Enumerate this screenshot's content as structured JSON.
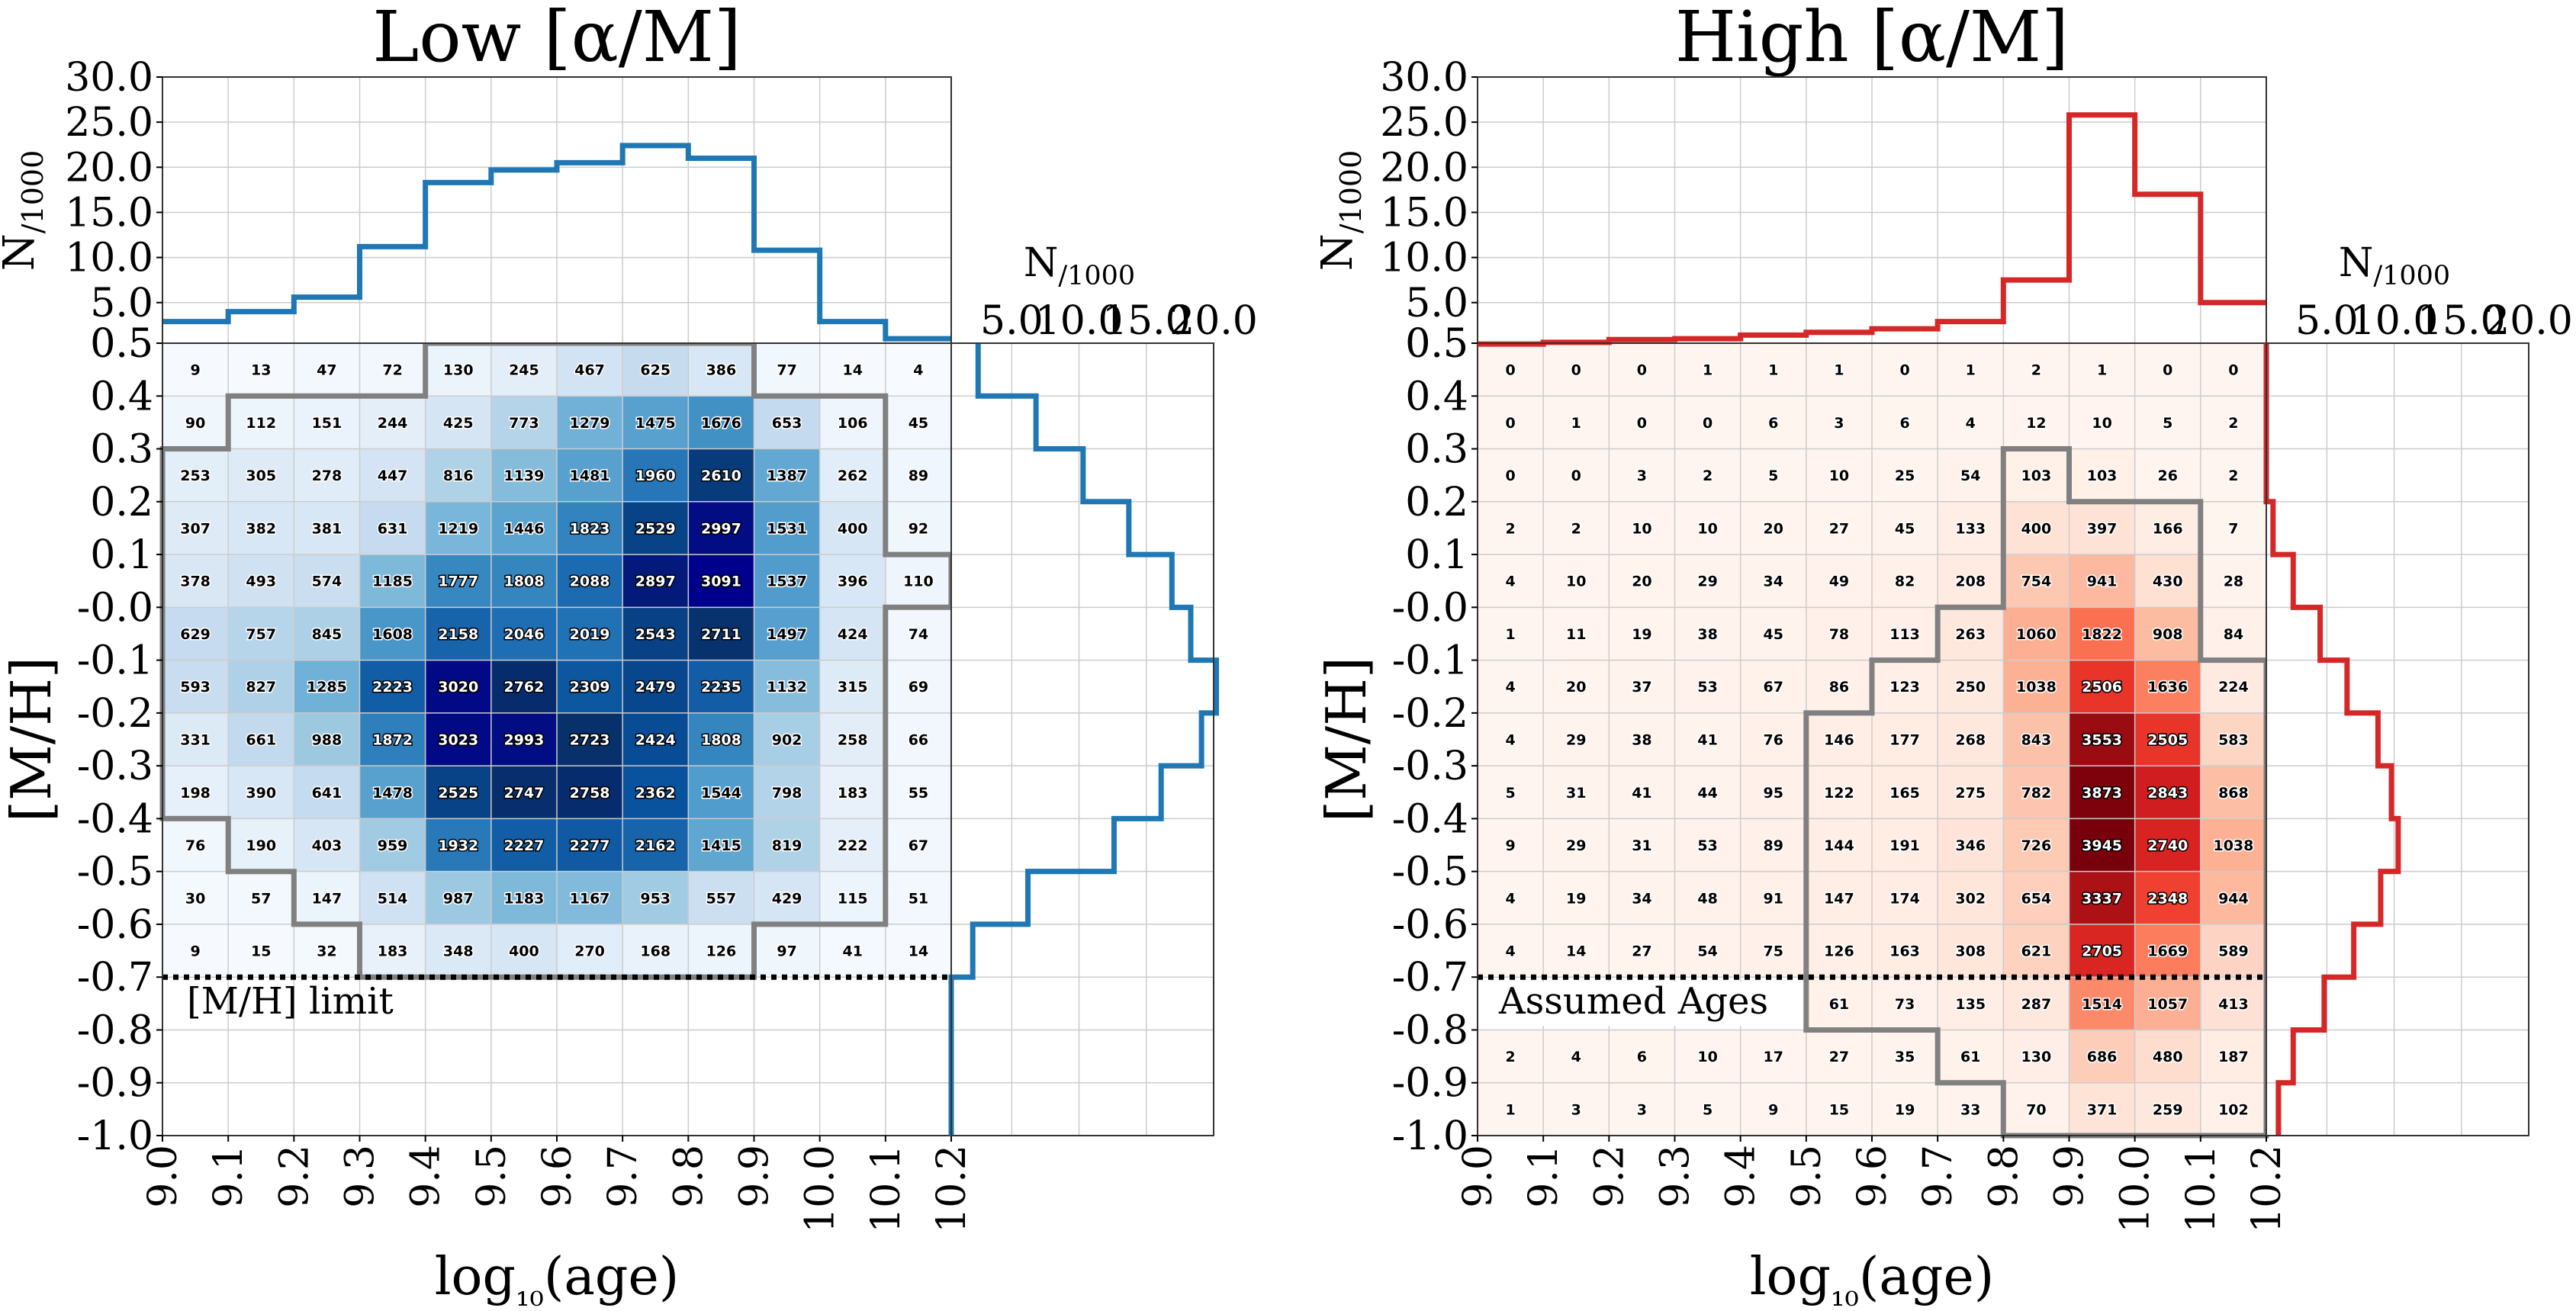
{
  "chart_data": [
    {
      "type": "heatmap",
      "title": "Low [α/M]",
      "xlabel": "log₁₀(age)",
      "ylabel": "[M/H]",
      "x_bins": [
        9.0,
        9.1,
        9.2,
        9.3,
        9.4,
        9.5,
        9.6,
        9.7,
        9.8,
        9.9,
        10.0,
        10.1,
        10.2
      ],
      "y_bins": [
        0.5,
        0.4,
        0.3,
        0.2,
        0.1,
        0.0,
        -0.1,
        -0.2,
        -0.3,
        -0.4,
        -0.5,
        -0.6,
        -0.7,
        -0.8,
        -0.9,
        -1.0
      ],
      "x_tick_labels": [
        "9.0",
        "9.1",
        "9.2",
        "9.3",
        "9.4",
        "9.5",
        "9.6",
        "9.7",
        "9.8",
        "9.9",
        "10.0",
        "10.1",
        "10.2"
      ],
      "y_tick_labels": [
        "0.5",
        "0.4",
        "0.3",
        "0.2",
        "0.1",
        "-0.0",
        "-0.1",
        "-0.2",
        "-0.3",
        "-0.4",
        "-0.5",
        "-0.6",
        "-0.7",
        "-0.8",
        "-0.9",
        "-1.0"
      ],
      "counts": [
        [
          9,
          13,
          47,
          72,
          130,
          245,
          467,
          625,
          386,
          77,
          14,
          4
        ],
        [
          90,
          112,
          151,
          244,
          425,
          773,
          1279,
          1475,
          1676,
          653,
          106,
          45
        ],
        [
          253,
          305,
          278,
          447,
          816,
          1139,
          1481,
          1960,
          2610,
          1387,
          262,
          89
        ],
        [
          307,
          382,
          381,
          631,
          1219,
          1446,
          1823,
          2529,
          2997,
          1531,
          400,
          92
        ],
        [
          378,
          493,
          574,
          1185,
          1777,
          1808,
          2088,
          2897,
          3091,
          1537,
          396,
          110
        ],
        [
          629,
          757,
          845,
          1608,
          2158,
          2046,
          2019,
          2543,
          2711,
          1497,
          424,
          74
        ],
        [
          593,
          827,
          1285,
          2223,
          3020,
          2762,
          2309,
          2479,
          2235,
          1132,
          315,
          69
        ],
        [
          331,
          661,
          988,
          1872,
          3023,
          2993,
          2723,
          2424,
          1808,
          902,
          258,
          66
        ],
        [
          198,
          390,
          641,
          1478,
          2525,
          2747,
          2758,
          2362,
          1544,
          798,
          183,
          55
        ],
        [
          76,
          190,
          403,
          959,
          1932,
          2227,
          2277,
          2162,
          1415,
          819,
          222,
          67
        ],
        [
          30,
          57,
          147,
          514,
          987,
          1183,
          1167,
          953,
          557,
          429,
          115,
          51
        ],
        [
          9,
          15,
          32,
          183,
          348,
          400,
          270,
          168,
          126,
          97,
          41,
          14
        ],
        [
          null,
          null,
          null,
          null,
          null,
          null,
          null,
          null,
          null,
          null,
          null,
          null
        ],
        [
          null,
          null,
          null,
          null,
          null,
          null,
          null,
          null,
          null,
          null,
          null,
          null
        ],
        [
          null,
          null,
          null,
          null,
          null,
          null,
          null,
          null,
          null,
          null,
          null,
          null
        ]
      ],
      "colormap": "Blues",
      "contour_boundary": [
        [
          9.0,
          0.3
        ],
        [
          9.1,
          0.3
        ],
        [
          9.1,
          0.4
        ],
        [
          9.4,
          0.4
        ],
        [
          9.4,
          0.5
        ],
        [
          9.9,
          0.5
        ],
        [
          9.9,
          0.4
        ],
        [
          10.1,
          0.4
        ],
        [
          10.1,
          0.1
        ],
        [
          10.2,
          0.1
        ],
        [
          10.2,
          0.0
        ],
        [
          10.1,
          0.0
        ],
        [
          10.1,
          -0.6
        ],
        [
          9.9,
          -0.6
        ],
        [
          9.9,
          -0.7
        ],
        [
          9.3,
          -0.7
        ],
        [
          9.3,
          -0.6
        ],
        [
          9.2,
          -0.6
        ],
        [
          9.2,
          -0.5
        ],
        [
          9.1,
          -0.5
        ],
        [
          9.1,
          -0.4
        ],
        [
          9.0,
          -0.4
        ]
      ],
      "top_hist": {
        "ylabel": "N/1000",
        "ylim": [
          0.5,
          30.0
        ],
        "y_tick_labels": [
          "0.5",
          "5.0",
          "10.0",
          "15.0",
          "20.0",
          "25.0",
          "30.0"
        ],
        "values": [
          2.9,
          4.0,
          5.6,
          11.2,
          18.3,
          19.7,
          20.5,
          22.4,
          21.0,
          10.8,
          2.9,
          1.0
        ],
        "color": "#1f77b4"
      },
      "side_hist": {
        "xlabel": "N/1000",
        "xlim": [
          0.5,
          20.0
        ],
        "x_tick_labels": [
          "5.0",
          "10.0",
          "15.0",
          "20.0"
        ],
        "values": [
          2.5,
          6.8,
          10.3,
          13.7,
          16.9,
          18.3,
          20.2,
          19.1,
          16.1,
          12.6,
          6.2,
          2.1,
          0.4,
          0.0,
          0.0
        ],
        "color": "#1f77b4"
      },
      "annotation": {
        "text": "[M/H] limit",
        "y": -0.7
      }
    },
    {
      "type": "heatmap",
      "title": "High [α/M]",
      "xlabel": "log₁₀(age)",
      "ylabel": "[M/H]",
      "x_bins": [
        9.0,
        9.1,
        9.2,
        9.3,
        9.4,
        9.5,
        9.6,
        9.7,
        9.8,
        9.9,
        10.0,
        10.1,
        10.2
      ],
      "y_bins": [
        0.5,
        0.4,
        0.3,
        0.2,
        0.1,
        0.0,
        -0.1,
        -0.2,
        -0.3,
        -0.4,
        -0.5,
        -0.6,
        -0.7,
        -0.8,
        -0.9,
        -1.0
      ],
      "x_tick_labels": [
        "9.0",
        "9.1",
        "9.2",
        "9.3",
        "9.4",
        "9.5",
        "9.6",
        "9.7",
        "9.8",
        "9.9",
        "10.0",
        "10.1",
        "10.2"
      ],
      "y_tick_labels": [
        "0.5",
        "0.4",
        "0.3",
        "0.2",
        "0.1",
        "-0.0",
        "-0.1",
        "-0.2",
        "-0.3",
        "-0.4",
        "-0.5",
        "-0.6",
        "-0.7",
        "-0.8",
        "-0.9",
        "-1.0"
      ],
      "counts": [
        [
          0,
          0,
          0,
          1,
          1,
          1,
          0,
          1,
          2,
          1,
          0,
          0
        ],
        [
          0,
          1,
          0,
          0,
          6,
          3,
          6,
          4,
          12,
          10,
          5,
          2
        ],
        [
          0,
          0,
          3,
          2,
          5,
          10,
          25,
          54,
          103,
          103,
          26,
          2
        ],
        [
          2,
          2,
          10,
          10,
          20,
          27,
          45,
          133,
          400,
          397,
          166,
          7
        ],
        [
          4,
          10,
          20,
          29,
          34,
          49,
          82,
          208,
          754,
          941,
          430,
          28
        ],
        [
          1,
          11,
          19,
          38,
          45,
          78,
          113,
          263,
          1060,
          1822,
          908,
          84
        ],
        [
          4,
          20,
          37,
          53,
          67,
          86,
          123,
          250,
          1038,
          2506,
          1636,
          224
        ],
        [
          4,
          29,
          38,
          41,
          76,
          146,
          177,
          268,
          843,
          3553,
          2505,
          583
        ],
        [
          5,
          31,
          41,
          44,
          95,
          122,
          165,
          275,
          782,
          3873,
          2843,
          868
        ],
        [
          9,
          29,
          31,
          53,
          89,
          144,
          191,
          346,
          726,
          3945,
          2740,
          1038
        ],
        [
          4,
          19,
          34,
          48,
          91,
          147,
          174,
          302,
          654,
          3337,
          2348,
          944
        ],
        [
          4,
          14,
          27,
          54,
          75,
          126,
          163,
          308,
          621,
          2705,
          1669,
          589
        ],
        [
          null,
          null,
          null,
          null,
          null,
          61,
          73,
          135,
          287,
          1514,
          1057,
          413
        ],
        [
          2,
          4,
          6,
          10,
          17,
          27,
          35,
          61,
          130,
          686,
          480,
          187
        ],
        [
          1,
          3,
          3,
          5,
          9,
          15,
          19,
          33,
          70,
          371,
          259,
          102
        ]
      ],
      "colormap": "Reds",
      "contour_boundary": [
        [
          9.8,
          0.3
        ],
        [
          9.9,
          0.3
        ],
        [
          9.9,
          0.2
        ],
        [
          10.1,
          0.2
        ],
        [
          10.1,
          -0.1
        ],
        [
          10.2,
          -0.1
        ],
        [
          10.2,
          -1.0
        ],
        [
          9.8,
          -1.0
        ],
        [
          9.8,
          -0.9
        ],
        [
          9.7,
          -0.9
        ],
        [
          9.7,
          -0.8
        ],
        [
          9.5,
          -0.8
        ],
        [
          9.5,
          -0.2
        ],
        [
          9.6,
          -0.2
        ],
        [
          9.6,
          -0.1
        ],
        [
          9.7,
          -0.1
        ],
        [
          9.7,
          0.0
        ],
        [
          9.8,
          0.0
        ]
      ],
      "top_hist": {
        "ylabel": "N/1000",
        "ylim": [
          0.5,
          30.0
        ],
        "y_tick_labels": [
          "0.5",
          "5.0",
          "10.0",
          "15.0",
          "20.0",
          "25.0",
          "30.0"
        ],
        "values": [
          0.4,
          0.6,
          0.9,
          1.0,
          1.4,
          1.7,
          2.1,
          2.9,
          7.5,
          25.8,
          17.0,
          5.0
        ],
        "color": "#d62728"
      },
      "side_hist": {
        "xlabel": "N/1000",
        "xlim": [
          0.5,
          20.0
        ],
        "x_tick_labels": [
          "5.0",
          "10.0",
          "15.0",
          "20.0"
        ],
        "values": [
          0.0,
          0.1,
          0.2,
          1.0,
          2.5,
          4.5,
          6.5,
          8.8,
          9.8,
          10.3,
          9.0,
          7.0,
          4.8,
          2.5,
          1.4
        ],
        "color": "#d62728"
      },
      "annotation": {
        "text": "Assumed Ages",
        "y": -0.7
      }
    }
  ]
}
